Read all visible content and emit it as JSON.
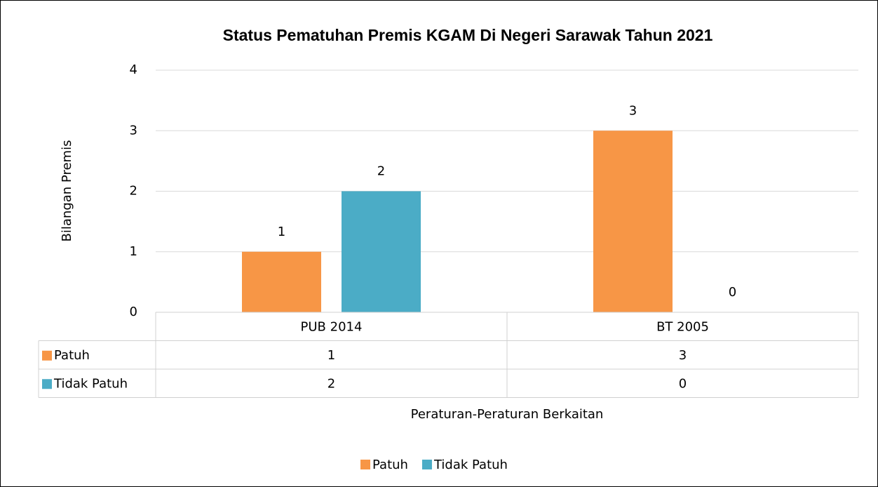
{
  "chart_data": {
    "type": "bar",
    "title": "Status Pematuhan Premis KGAM Di Negeri Sarawak Tahun 2021",
    "x_label": "Peraturan-Peraturan Berkaitan",
    "y_label": "Bilangan Premis",
    "categories": [
      "PUB 2014",
      "BT 2005"
    ],
    "series": [
      {
        "name": "Patuh",
        "color": "#f79646",
        "values": [
          1,
          3
        ]
      },
      {
        "name": "Tidak Patuh",
        "color": "#4bacc6",
        "values": [
          2,
          0
        ]
      }
    ],
    "ylim": [
      0,
      4
    ],
    "yticks": [
      0,
      1,
      2,
      3,
      4
    ],
    "grid": true,
    "legend": "bottom"
  }
}
